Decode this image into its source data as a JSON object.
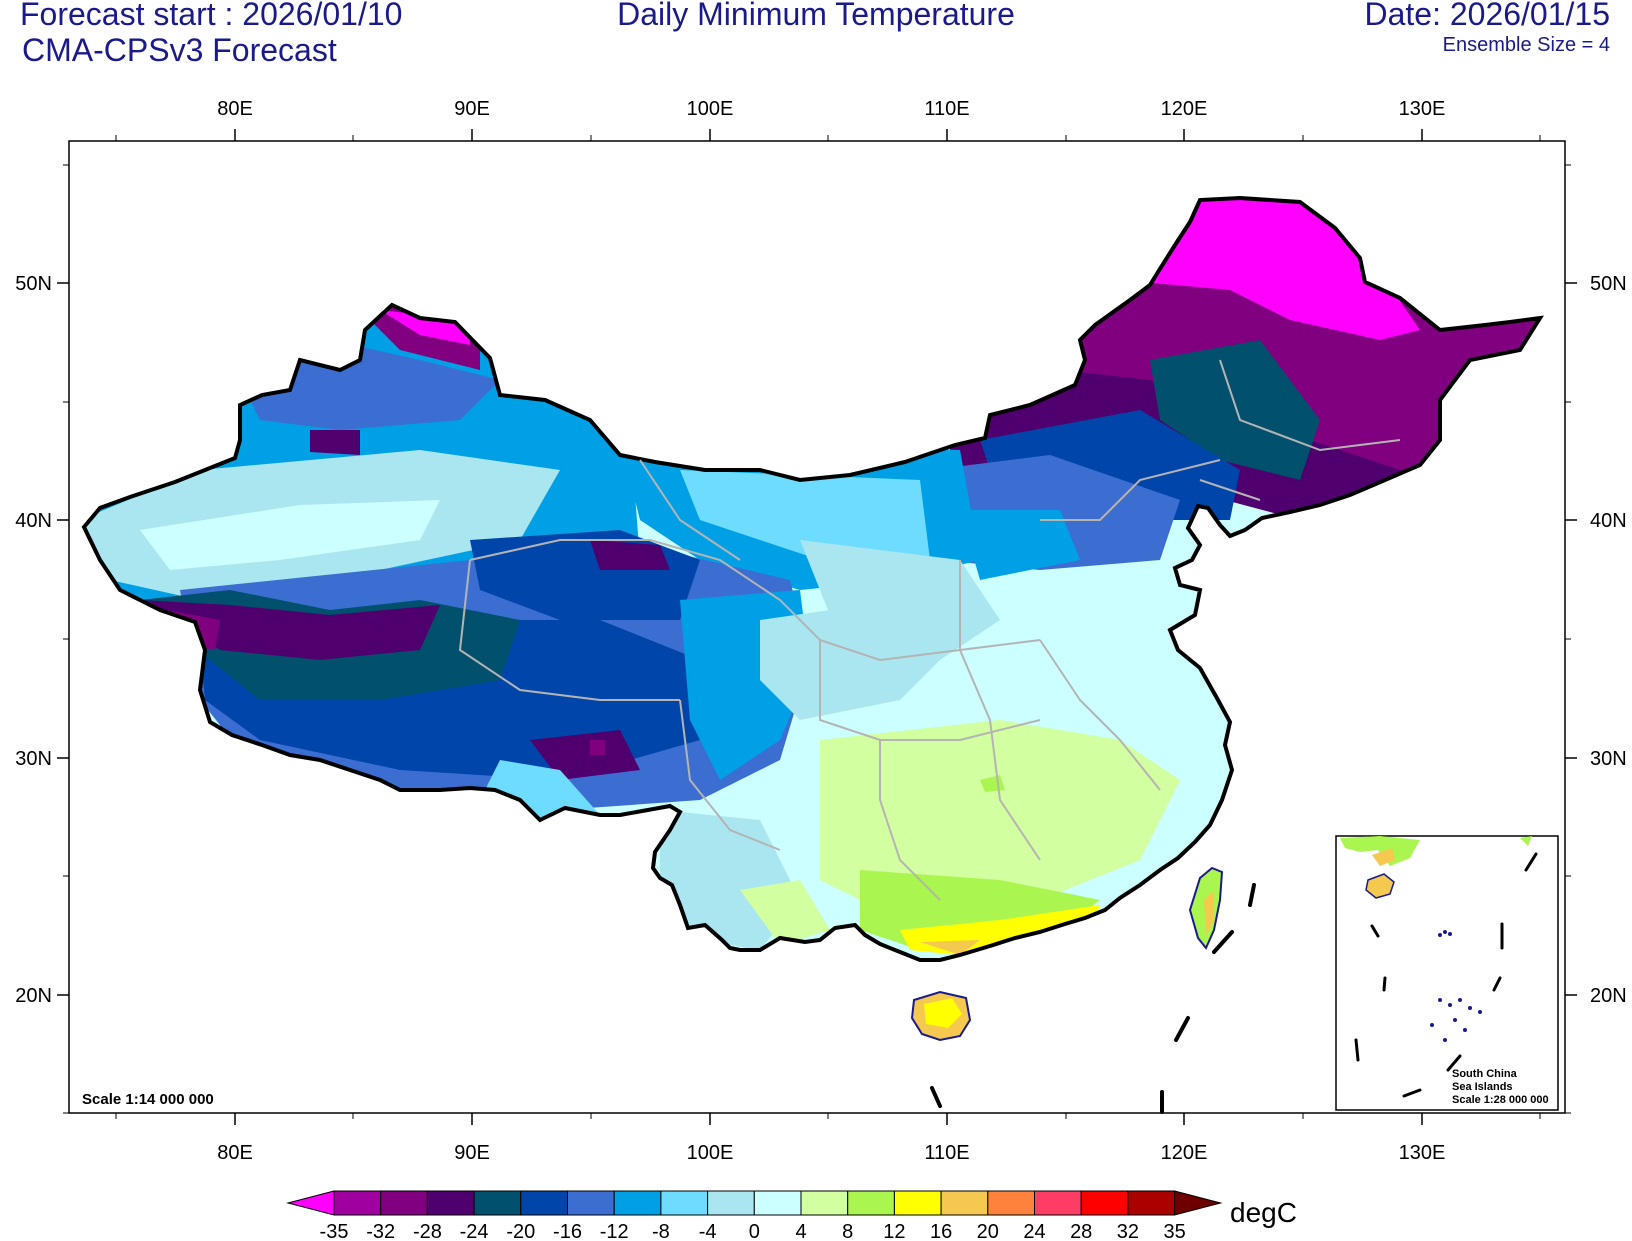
{
  "header": {
    "forecast_start": "Forecast start : 2026/01/10",
    "model": "CMA-CPSv3 Forecast",
    "title": "Daily Minimum Temperature",
    "date": "Date: 2026/01/15",
    "ensemble": "Ensemble Size = 4"
  },
  "axes": {
    "lon_labels": [
      "80E",
      "90E",
      "100E",
      "110E",
      "120E",
      "130E"
    ],
    "lat_labels": [
      "50N",
      "40N",
      "30N",
      "20N"
    ]
  },
  "map": {
    "scale": "Scale 1:14 000 000",
    "inset": {
      "line1": "South China",
      "line2": "Sea Islands",
      "line3": "Scale 1:28 000 000"
    }
  },
  "colorbar": {
    "unit": "degC",
    "levels": [
      "-35",
      "-32",
      "-28",
      "-24",
      "-20",
      "-16",
      "-12",
      "-8",
      "-4",
      "0",
      "4",
      "8",
      "12",
      "16",
      "20",
      "24",
      "28",
      "32",
      "35"
    ],
    "colors": [
      "#ff00ff",
      "#a000a0",
      "#800080",
      "#50006e",
      "#00506e",
      "#0046aa",
      "#3c6ed2",
      "#00a0e6",
      "#6edcff",
      "#aae6f0",
      "#ccffff",
      "#d2ffa0",
      "#aaf550",
      "#ffff00",
      "#f5c850",
      "#ff823c",
      "#ff3c64",
      "#ff0000",
      "#aa0000",
      "#6e0000"
    ]
  }
}
